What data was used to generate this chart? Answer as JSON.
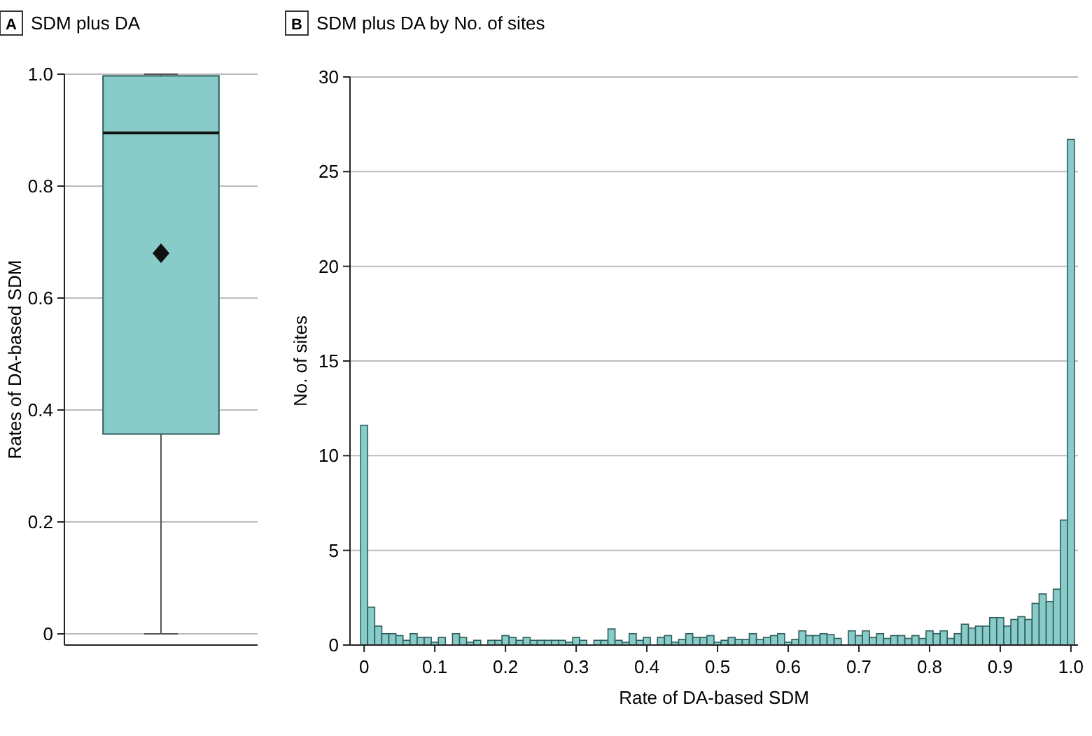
{
  "chart_data": [
    {
      "type": "box",
      "title": "SDM plus DA",
      "annotations": [
        "A"
      ],
      "ylabel": "Rates of DA-based SDM",
      "categories": [
        null
      ],
      "color": "#88cbc8",
      "boxes": [
        {
          "low": 0,
          "q1": 0.357,
          "median": 0.895,
          "q3": 0.997,
          "high": 1.0,
          "mean": 0.68
        }
      ],
      "ylim": [
        -0.02,
        1.0
      ],
      "yticks": [
        0,
        0.2,
        0.4,
        0.6,
        0.8,
        {
          "value": 1.0,
          "label": "1.0"
        }
      ],
      "grid": "y"
    },
    {
      "type": "histogram",
      "title": "SDM plus DA by No. of sites",
      "annotations": [
        "B"
      ],
      "xlabel": "Rate of DA-based SDM",
      "ylabel": "No. of sites",
      "color": "#88cbc8",
      "bins": [
        -0.005,
        0.005,
        0.015,
        0.025,
        0.035,
        0.045,
        0.055,
        0.065,
        0.075,
        0.085,
        0.095,
        0.105,
        0.115,
        0.125,
        0.135,
        0.145,
        0.155,
        0.165,
        0.175,
        0.185,
        0.195,
        0.205,
        0.215,
        0.225,
        0.235,
        0.245,
        0.255,
        0.265,
        0.275,
        0.285,
        0.295,
        0.305,
        0.315,
        0.325,
        0.335,
        0.345,
        0.355,
        0.365,
        0.375,
        0.385,
        0.395,
        0.405,
        0.415,
        0.425,
        0.435,
        0.445,
        0.455,
        0.465,
        0.475,
        0.485,
        0.495,
        0.505,
        0.515,
        0.525,
        0.535,
        0.545,
        0.555,
        0.565,
        0.575,
        0.585,
        0.595,
        0.605,
        0.615,
        0.625,
        0.635,
        0.645,
        0.655,
        0.665,
        0.675,
        0.685,
        0.695,
        0.705,
        0.715,
        0.725,
        0.735,
        0.745,
        0.755,
        0.765,
        0.775,
        0.785,
        0.795,
        0.805,
        0.815,
        0.825,
        0.835,
        0.845,
        0.855,
        0.865,
        0.875,
        0.885,
        0.895,
        0.905,
        0.915,
        0.925,
        0.935,
        0.945,
        0.955,
        0.965,
        0.975,
        0.985,
        0.995,
        1.005
      ],
      "values": [
        11.6,
        2.0,
        1.0,
        0.6,
        0.6,
        0.5,
        0.25,
        0.6,
        0.4,
        0.4,
        0.15,
        0.4,
        0,
        0.6,
        0.4,
        0.15,
        0.25,
        0,
        0.25,
        0.25,
        0.5,
        0.4,
        0.25,
        0.4,
        0.25,
        0.25,
        0.25,
        0.25,
        0.25,
        0.15,
        0.4,
        0.25,
        0,
        0.25,
        0.25,
        0.85,
        0.25,
        0.15,
        0.6,
        0.25,
        0.4,
        0,
        0.4,
        0.5,
        0.15,
        0.3,
        0.6,
        0.4,
        0.4,
        0.5,
        0.15,
        0.25,
        0.4,
        0.3,
        0.3,
        0.6,
        0.3,
        0.4,
        0.5,
        0.6,
        0.15,
        0.3,
        0.75,
        0.5,
        0.5,
        0.6,
        0.55,
        0.35,
        0,
        0.75,
        0.5,
        0.75,
        0.4,
        0.6,
        0.35,
        0.5,
        0.5,
        0.35,
        0.5,
        0.35,
        0.75,
        0.6,
        0.75,
        0.35,
        0.6,
        1.1,
        0.9,
        1.0,
        1.0,
        1.45,
        1.45,
        1.0,
        1.35,
        1.5,
        1.35,
        2.2,
        2.7,
        2.3,
        2.95,
        6.6,
        26.7
      ],
      "xlim": [
        -0.02,
        1.01
      ],
      "xticks": [
        0,
        0.1,
        0.2,
        0.3,
        0.4,
        0.5,
        0.6,
        0.7,
        0.8,
        0.9,
        {
          "value": 1.0,
          "label": "1.0"
        }
      ],
      "ylim": [
        0,
        30
      ],
      "yticks": [
        0,
        5,
        10,
        15,
        20,
        25,
        30
      ],
      "grid": "y"
    }
  ]
}
